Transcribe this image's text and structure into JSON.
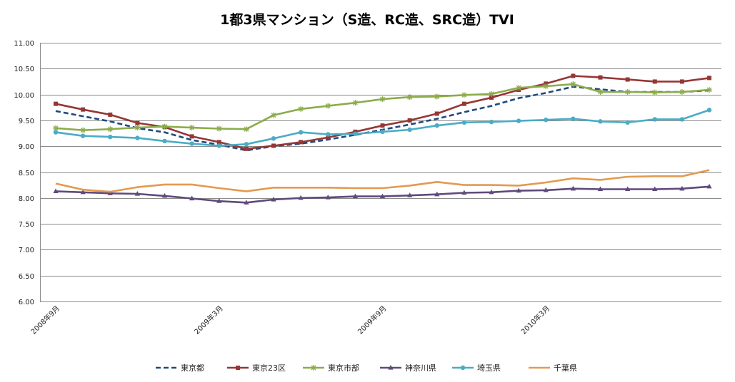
{
  "chart_data": {
    "type": "line",
    "title": "1都3県マンション（S造、RC造、SRC造）TVI",
    "xlabel": "",
    "ylabel": "",
    "ylim": [
      6.0,
      11.0
    ],
    "y_ticks": [
      "6.00",
      "6.50",
      "7.00",
      "7.50",
      "8.00",
      "8.50",
      "9.00",
      "9.50",
      "10.00",
      "10.50",
      "11.00"
    ],
    "categories": [
      "2008年9月",
      "2008年10月",
      "2008年11月",
      "2008年12月",
      "2009年1月",
      "2009年2月",
      "2009年3月",
      "2009年4月",
      "2009年5月",
      "2009年6月",
      "2009年7月",
      "2009年8月",
      "2009年9月",
      "2009年10月",
      "2009年11月",
      "2009年12月",
      "2010年1月",
      "2010年2月",
      "2010年3月",
      "2010年4月",
      "2010年5月",
      "2010年6月",
      "2010年7月",
      "2010年8月",
      "2010年9月"
    ],
    "x_tick_labels": [
      {
        "index": 0,
        "label": "2008年9月"
      },
      {
        "index": 6,
        "label": "2009年3月"
      },
      {
        "index": 12,
        "label": "2009年9月"
      },
      {
        "index": 18,
        "label": "2010年3月"
      }
    ],
    "grid": true,
    "legend_position": "bottom",
    "series": [
      {
        "name": "東京都",
        "color": "#1f497d",
        "dashed": true,
        "marker": "none",
        "values": [
          9.68,
          9.58,
          9.48,
          9.35,
          9.27,
          9.12,
          9.03,
          8.92,
          9.0,
          9.05,
          9.13,
          9.22,
          9.32,
          9.42,
          9.53,
          9.66,
          9.78,
          9.93,
          10.03,
          10.15,
          10.1,
          10.05,
          10.05,
          10.05,
          10.08
        ]
      },
      {
        "name": "東京23区",
        "color": "#953735",
        "dashed": false,
        "marker": "square",
        "values": [
          9.82,
          9.71,
          9.61,
          9.45,
          9.37,
          9.19,
          9.08,
          8.95,
          9.01,
          9.08,
          9.17,
          9.28,
          9.4,
          9.5,
          9.63,
          9.82,
          9.94,
          10.09,
          10.21,
          10.36,
          10.33,
          10.29,
          10.25,
          10.25,
          10.32
        ]
      },
      {
        "name": "東京市部",
        "color": "#8cac4a",
        "dashed": false,
        "marker": "star",
        "values": [
          9.35,
          9.31,
          9.33,
          9.36,
          9.38,
          9.36,
          9.34,
          9.33,
          9.6,
          9.72,
          9.78,
          9.84,
          9.91,
          9.95,
          9.96,
          9.99,
          10.01,
          10.13,
          10.16,
          10.2,
          10.05,
          10.05,
          10.04,
          10.05,
          10.09
        ]
      },
      {
        "name": "神奈川県",
        "color": "#604a7b",
        "dashed": false,
        "marker": "triangle",
        "values": [
          8.13,
          8.11,
          8.09,
          8.08,
          8.04,
          7.99,
          7.94,
          7.91,
          7.97,
          8.0,
          8.01,
          8.03,
          8.03,
          8.05,
          8.07,
          8.1,
          8.11,
          8.14,
          8.15,
          8.18,
          8.17,
          8.17,
          8.17,
          8.18,
          8.22
        ]
      },
      {
        "name": "埼玉県",
        "color": "#4aacc6",
        "dashed": false,
        "marker": "circle",
        "values": [
          9.27,
          9.2,
          9.18,
          9.16,
          9.1,
          9.05,
          9.01,
          9.04,
          9.15,
          9.27,
          9.23,
          9.24,
          9.28,
          9.32,
          9.4,
          9.46,
          9.47,
          9.49,
          9.51,
          9.53,
          9.48,
          9.46,
          9.52,
          9.52,
          9.7
        ]
      },
      {
        "name": "千葉県",
        "color": "#e39a50",
        "dashed": false,
        "marker": "none",
        "values": [
          8.28,
          8.16,
          8.12,
          8.21,
          8.26,
          8.26,
          8.19,
          8.13,
          8.2,
          8.2,
          8.2,
          8.19,
          8.19,
          8.24,
          8.31,
          8.25,
          8.25,
          8.24,
          8.3,
          8.38,
          8.35,
          8.41,
          8.42,
          8.42,
          8.54
        ]
      }
    ]
  }
}
